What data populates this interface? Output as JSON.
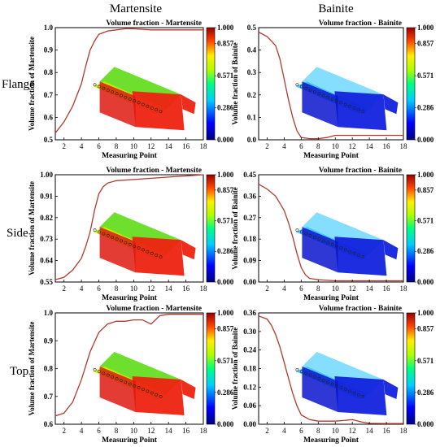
{
  "column_titles": [
    "Martensite",
    "Bainite"
  ],
  "row_labels": [
    "Flange",
    "Side",
    "Top"
  ],
  "colors": {
    "curve": "#b03a2e",
    "frame": "#000000"
  },
  "colorbar": {
    "ticks": [
      "1.000",
      "0.857",
      "0.571",
      "0.286",
      "0.000"
    ],
    "values": [
      1.0,
      0.857,
      0.571,
      0.286,
      0.0
    ]
  },
  "chart_data": [
    {
      "type": "line",
      "title": "Volume fraction - Martensite",
      "xlabel": "Measuring Point",
      "ylabel": "Volume fraction of Martensite",
      "xlim": [
        1,
        18
      ],
      "ylim": [
        0.5,
        1.0
      ],
      "xticks": [
        "2",
        "4",
        "6",
        "8",
        "10",
        "12",
        "14",
        "16",
        "18"
      ],
      "yticks": [
        "0.5",
        "0.6",
        "0.7",
        "0.8",
        "0.9",
        "1.0"
      ],
      "x": [
        1,
        2,
        3,
        4,
        4.5,
        5,
        5.5,
        6,
        7,
        8,
        9,
        10,
        12,
        14,
        16,
        18
      ],
      "y": [
        0.53,
        0.58,
        0.65,
        0.75,
        0.83,
        0.9,
        0.94,
        0.97,
        0.985,
        0.99,
        0.995,
        0.995,
        0.99,
        0.99,
        0.99,
        0.99
      ]
    },
    {
      "type": "line",
      "title": "Volume fraction - Bainite",
      "xlabel": "Measuring Point",
      "ylabel": "Volume fraction of Bainite",
      "xlim": [
        1,
        18
      ],
      "ylim": [
        0,
        0.5
      ],
      "xticks": [
        "2",
        "4",
        "6",
        "8",
        "10",
        "12",
        "14",
        "16",
        "18"
      ],
      "yticks": [
        "0.0",
        "0.1",
        "0.2",
        "0.3",
        "0.4",
        "0.5"
      ],
      "x": [
        1,
        2,
        3,
        3.5,
        4,
        4.5,
        5,
        5.5,
        6,
        7,
        8,
        9,
        10,
        12,
        14,
        16,
        18
      ],
      "y": [
        0.48,
        0.46,
        0.42,
        0.36,
        0.27,
        0.18,
        0.1,
        0.04,
        0.01,
        0.005,
        0.005,
        0.01,
        0.02,
        0.02,
        0.02,
        0.02,
        0.02
      ]
    },
    {
      "type": "line",
      "title": "Volume fraction - Martensite",
      "xlabel": "Measuring Point",
      "ylabel": "Volume fraction of Martensite",
      "xlim": [
        1,
        18
      ],
      "ylim": [
        0.55,
        1.0
      ],
      "xticks": [
        "2",
        "4",
        "6",
        "8",
        "10",
        "12",
        "14",
        "16",
        "18"
      ],
      "yticks": [
        "0.55",
        "0.64",
        "0.73",
        "0.82",
        "0.91",
        "1.00"
      ],
      "x": [
        1,
        2,
        3,
        4,
        4.5,
        5,
        5.5,
        6,
        6.5,
        7,
        8,
        10,
        12,
        14,
        16,
        18
      ],
      "y": [
        0.56,
        0.57,
        0.6,
        0.65,
        0.7,
        0.76,
        0.85,
        0.92,
        0.95,
        0.965,
        0.975,
        0.98,
        0.985,
        0.99,
        0.995,
        1.0
      ]
    },
    {
      "type": "line",
      "title": "Volume fraction - Bainite",
      "xlabel": "Measuring Point",
      "ylabel": "Volume fraction of Bainite",
      "xlim": [
        1,
        18
      ],
      "ylim": [
        0,
        0.45
      ],
      "xticks": [
        "2",
        "4",
        "6",
        "8",
        "10",
        "12",
        "14",
        "16",
        "18"
      ],
      "yticks": [
        "0.00",
        "0.09",
        "0.18",
        "0.27",
        "0.36",
        "0.45"
      ],
      "x": [
        1,
        2,
        3,
        3.5,
        4,
        4.5,
        5,
        5.5,
        6,
        6.5,
        7,
        8,
        10,
        12,
        14,
        16,
        18
      ],
      "y": [
        0.41,
        0.39,
        0.36,
        0.33,
        0.3,
        0.25,
        0.19,
        0.12,
        0.06,
        0.03,
        0.015,
        0.01,
        0.005,
        0.005,
        0.005,
        0.005,
        0.005
      ]
    },
    {
      "type": "line",
      "title": "Volume fraction - Martensite",
      "xlabel": "Measuring Point",
      "ylabel": "Volume fraction of Martensite",
      "xlim": [
        1,
        18
      ],
      "ylim": [
        0.6,
        1.0
      ],
      "xticks": [
        "2",
        "4",
        "6",
        "8",
        "10",
        "12",
        "14",
        "16",
        "18"
      ],
      "yticks": [
        "0.6",
        "0.7",
        "0.8",
        "0.9",
        "1.0"
      ],
      "x": [
        1,
        2,
        3,
        4,
        5,
        6,
        7,
        8,
        9,
        10,
        11,
        12,
        12.5,
        13,
        14,
        16,
        18
      ],
      "y": [
        0.63,
        0.64,
        0.68,
        0.76,
        0.86,
        0.93,
        0.96,
        0.97,
        0.97,
        0.975,
        0.975,
        0.96,
        0.975,
        0.99,
        0.995,
        0.995,
        0.995
      ]
    },
    {
      "type": "line",
      "title": "Volume fraction - Bainite",
      "xlabel": "Measuring Point",
      "ylabel": "Volume fraction of Bainite",
      "xlim": [
        1,
        18
      ],
      "ylim": [
        0,
        0.36
      ],
      "xticks": [
        "2",
        "4",
        "6",
        "8",
        "10",
        "12",
        "14",
        "16",
        "18"
      ],
      "yticks": [
        "0.00",
        "0.06",
        "0.12",
        "0.18",
        "0.24",
        "0.30",
        "0.36"
      ],
      "x": [
        1,
        2,
        2.5,
        3,
        3.5,
        4,
        4.5,
        5,
        5.5,
        6,
        7,
        8,
        10,
        11,
        12,
        13,
        14,
        16,
        18
      ],
      "y": [
        0.35,
        0.34,
        0.32,
        0.29,
        0.25,
        0.2,
        0.15,
        0.1,
        0.06,
        0.03,
        0.015,
        0.01,
        0.01,
        0.012,
        0.015,
        0.008,
        0.003,
        0.002,
        0.002
      ]
    }
  ]
}
